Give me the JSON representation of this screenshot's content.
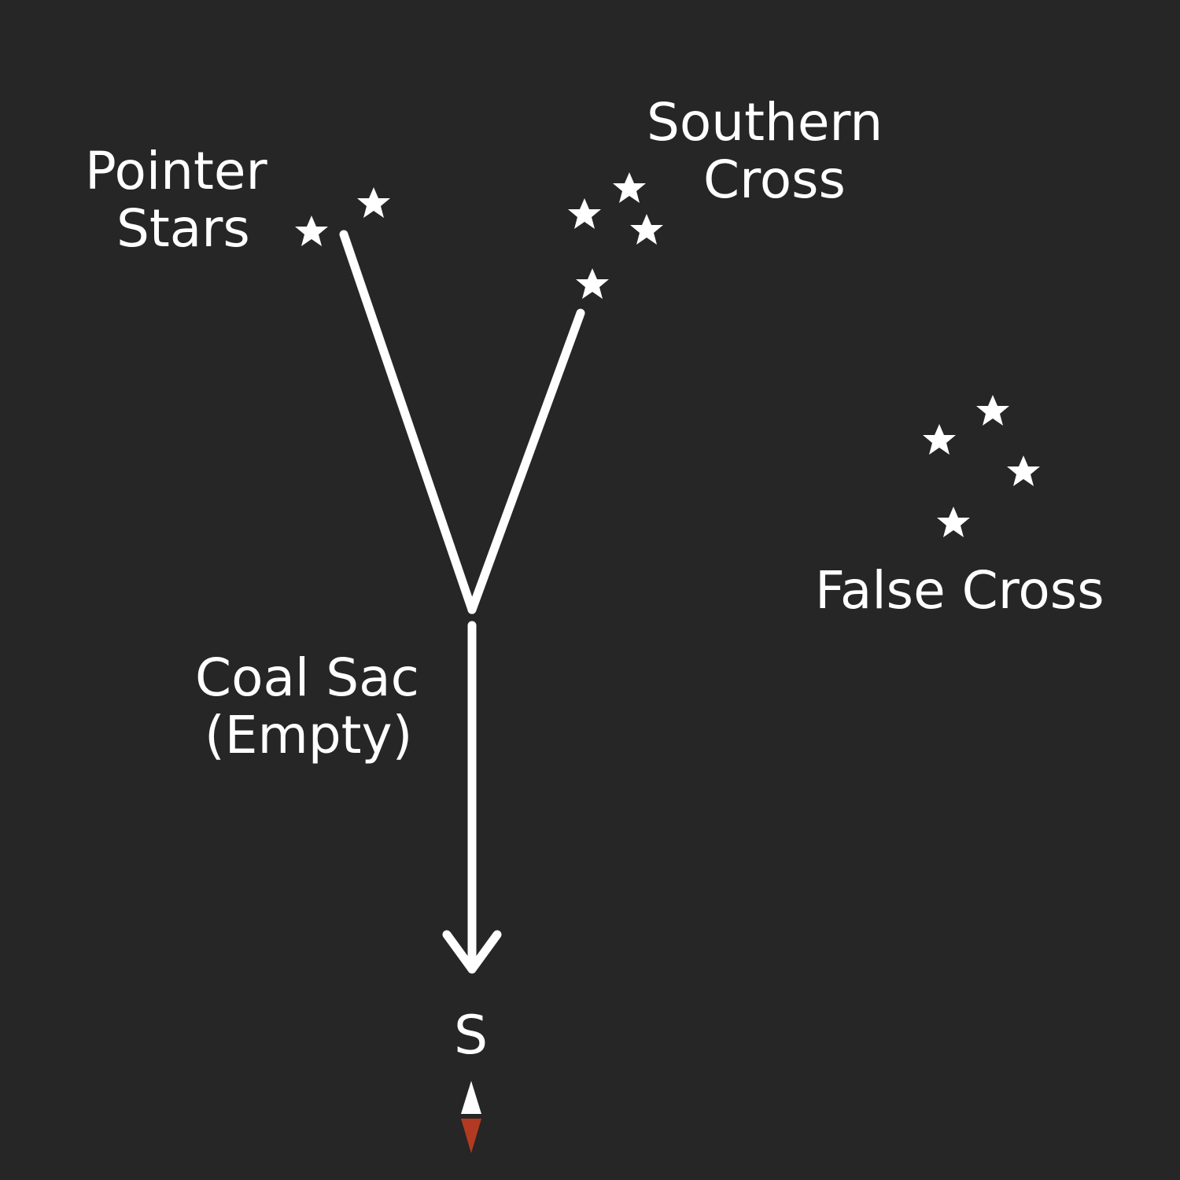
{
  "labels": {
    "pointer_stars": [
      "Pointer",
      "Stars"
    ],
    "southern_cross": [
      "Southern",
      "Cross"
    ],
    "false_cross": "False Cross",
    "coal_sac": [
      "Coal Sac",
      "(Empty)"
    ],
    "south": "S"
  },
  "colors": {
    "background": "#262626",
    "foreground": "#ffffff",
    "compass_south": "#b33a22"
  },
  "icons": {
    "star": "star-icon",
    "compass": "compass-needle-icon"
  }
}
